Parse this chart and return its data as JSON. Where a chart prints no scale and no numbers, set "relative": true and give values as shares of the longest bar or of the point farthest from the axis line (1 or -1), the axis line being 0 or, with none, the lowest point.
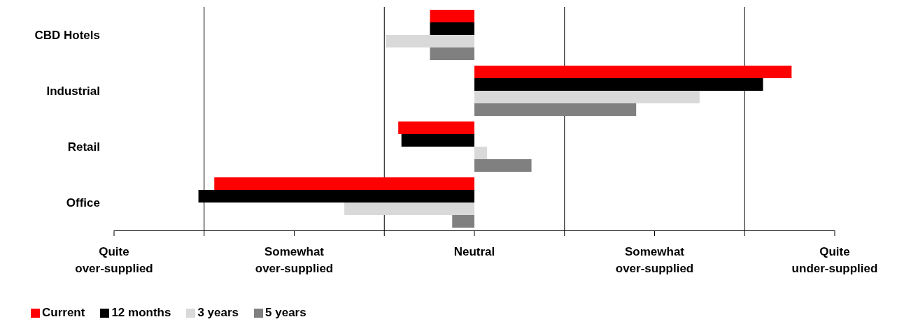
{
  "chart_data": {
    "type": "bar",
    "orientation": "horizontal",
    "relative": true,
    "categories": [
      "CBD Hotels",
      "Industrial",
      "Retail",
      "Office"
    ],
    "series": [
      {
        "name": "Current",
        "color": "#ff0000",
        "values": [
          -0.14,
          1,
          -0.24,
          -0.82
        ]
      },
      {
        "name": "12 months",
        "color": "#000000",
        "values": [
          -0.14,
          0.91,
          -0.23,
          -0.87
        ]
      },
      {
        "name": "3 years",
        "color": "#d9d9d9",
        "values": [
          -0.28,
          0.71,
          0.04,
          -0.41
        ]
      },
      {
        "name": "5 years",
        "color": "#808080",
        "values": [
          -0.14,
          0.51,
          0.18,
          -0.07
        ]
      }
    ],
    "annotations": [
      "Quite over-supplied",
      "Somewhat over-supplied",
      "Neutral",
      "Somewhat over-supplied",
      "Quite under-supplied"
    ],
    "grid": "x",
    "legend": "bottom left"
  }
}
